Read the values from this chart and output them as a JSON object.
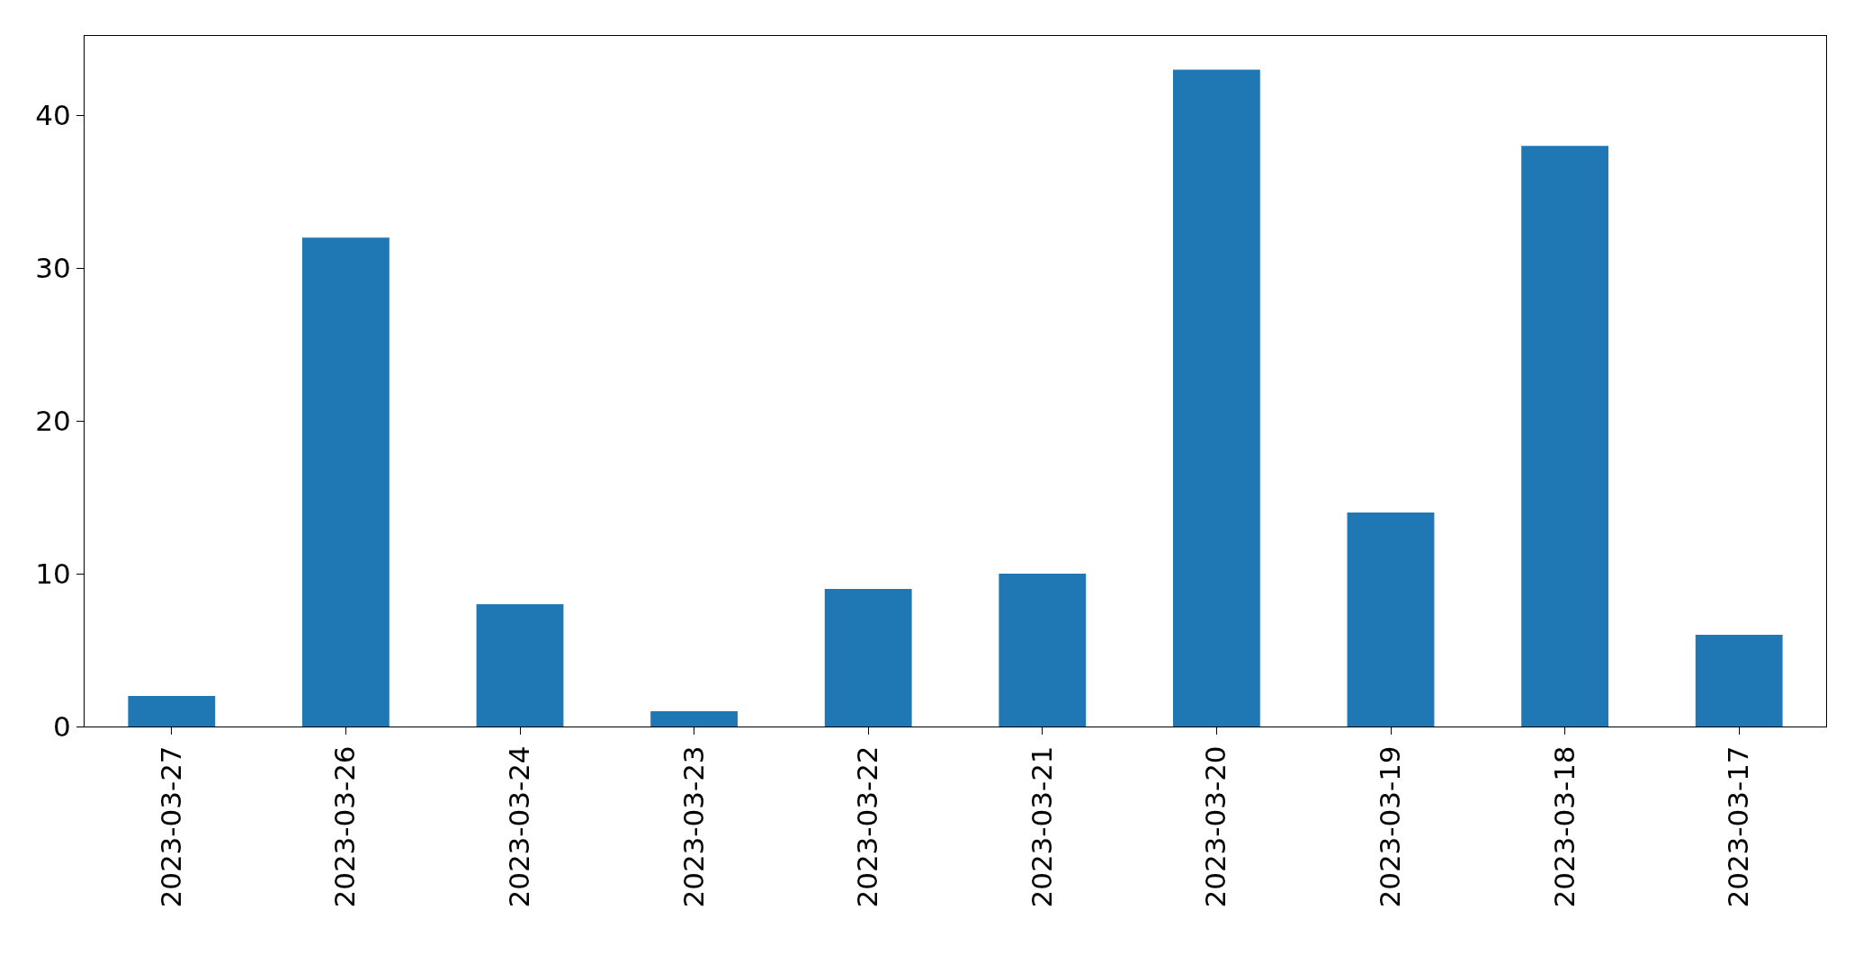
{
  "chart_data": {
    "type": "bar",
    "categories": [
      "2023-03-27",
      "2023-03-26",
      "2023-03-24",
      "2023-03-23",
      "2023-03-22",
      "2023-03-21",
      "2023-03-20",
      "2023-03-19",
      "2023-03-18",
      "2023-03-17"
    ],
    "values": [
      2,
      32,
      8,
      1,
      9,
      10,
      43,
      14,
      38,
      6
    ],
    "color": "#1f77b4",
    "ylim": [
      0,
      45.2
    ],
    "yticks": [
      0,
      10,
      20,
      30,
      40
    ]
  }
}
